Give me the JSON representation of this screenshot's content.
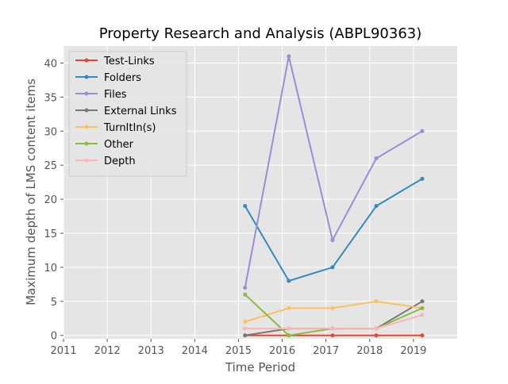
{
  "chart_data": {
    "type": "line",
    "title": "Property Research and Analysis (ABPL90363)",
    "xlabel": "Time Period",
    "ylabel": "Maximum depth of LMS content items",
    "xlim": [
      2011,
      2020
    ],
    "ylim": [
      -0.5,
      42.5
    ],
    "x_ticks": [
      "2011",
      "2012",
      "2013",
      "2014",
      "2015",
      "2016",
      "2017",
      "2018",
      "2019"
    ],
    "y_ticks": [
      "0",
      "5",
      "10",
      "15",
      "20",
      "25",
      "30",
      "35",
      "40"
    ],
    "x": [
      2015.15,
      2016.15,
      2017.15,
      2018.15,
      2019.2
    ],
    "grid": true,
    "legend_position": "top-left",
    "series": [
      {
        "name": "Test-Links",
        "color": "#E24A33",
        "values": [
          0,
          0,
          0,
          0,
          0
        ]
      },
      {
        "name": "Folders",
        "color": "#348ABD",
        "values": [
          19,
          8,
          10,
          19,
          23
        ]
      },
      {
        "name": "Files",
        "color": "#988ED5",
        "values": [
          7,
          41,
          14,
          26,
          30
        ]
      },
      {
        "name": "External Links",
        "color": "#777777",
        "values": [
          0,
          1,
          1,
          1,
          5
        ]
      },
      {
        "name": "TurnItIn(s)",
        "color": "#FBC15E",
        "values": [
          2,
          4,
          4,
          5,
          4
        ]
      },
      {
        "name": "Other",
        "color": "#8EBA42",
        "values": [
          6,
          0,
          1,
          1,
          4
        ]
      },
      {
        "name": "Depth",
        "color": "#FFB5B8",
        "values": [
          1,
          1,
          1,
          1,
          3
        ]
      }
    ]
  }
}
